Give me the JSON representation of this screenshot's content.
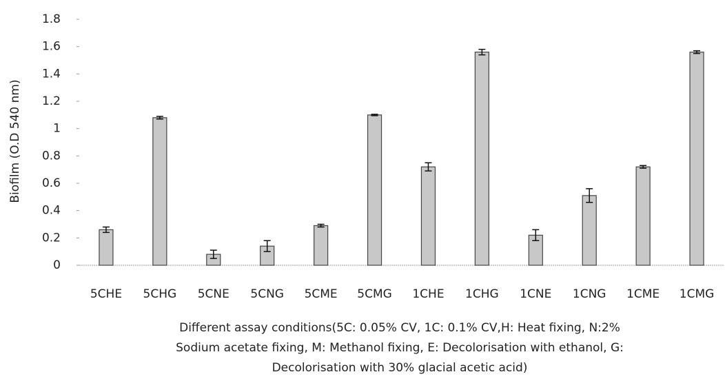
{
  "chart_data": {
    "type": "bar",
    "y_label": "Biofilm (O.D 540 nm)",
    "x_label": [
      "Different assay conditions(5C: 0.05% CV, 1C: 0.1% CV,H: Heat fixing, N:2%",
      "Sodium acetate fixing, M: Methanol fixing, E: Decolorisation with ethanol, G:",
      "Decolorisation with 30% glacial acetic acid)"
    ],
    "categories": [
      "5CHE",
      "5CHG",
      "5CNE",
      "5CNG",
      "5CME",
      "5CMG",
      "1CHE",
      "1CHG",
      "1CNE",
      "1CNG",
      "1CME",
      "1CMG"
    ],
    "values": [
      0.26,
      1.08,
      0.08,
      0.14,
      0.29,
      1.1,
      0.72,
      1.56,
      0.22,
      0.51,
      0.72,
      1.56
    ],
    "errors": [
      0.02,
      0.01,
      0.03,
      0.04,
      0.01,
      0.005,
      0.03,
      0.02,
      0.04,
      0.05,
      0.01,
      0.01
    ],
    "color": "#c8c8c8",
    "ylim": [
      0,
      1.8
    ],
    "yticks": [
      0,
      0.2,
      0.4,
      0.6,
      0.8,
      1,
      1.2,
      1.4,
      1.6,
      1.8
    ]
  }
}
